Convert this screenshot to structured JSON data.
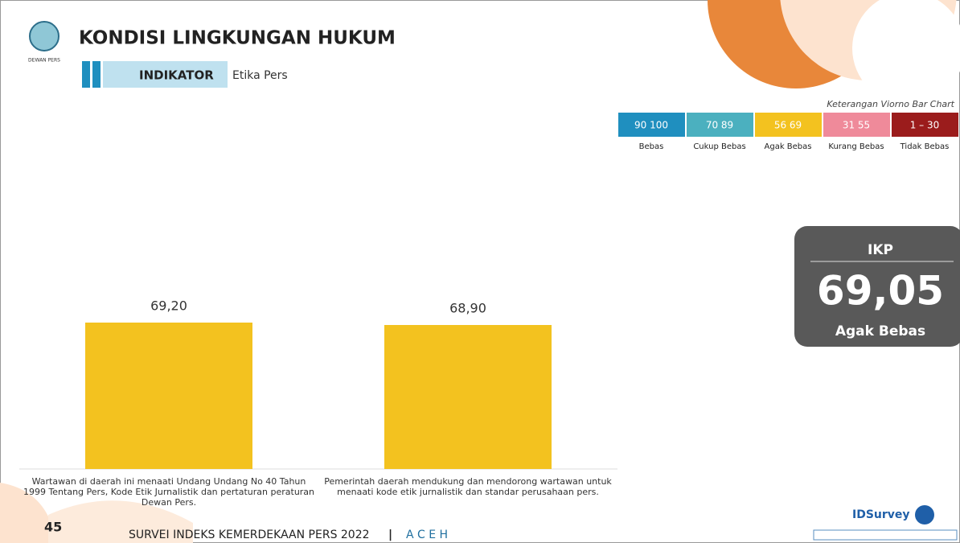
{
  "header": {
    "title": "KONDISI LINGKUNGAN HUKUM",
    "indicator_label": "INDIKATOR",
    "indicator": "Etika Pers",
    "logo_text": "DEWAN PERS"
  },
  "legend": {
    "title": "Keterangan Viorno Bar Chart",
    "items": [
      {
        "range": "90  100",
        "label": "Bebas",
        "color": "#1f8fbf"
      },
      {
        "range": "70  89",
        "label": "Cukup Bebas",
        "color": "#4bb0bf"
      },
      {
        "range": "56  69",
        "label": "Agak Bebas",
        "color": "#f3c21f"
      },
      {
        "range": "31  55",
        "label": "Kurang Bebas",
        "color": "#ef8a9a"
      },
      {
        "range": "1 – 30",
        "label": "Tidak Bebas",
        "color": "#9b1c1c"
      }
    ]
  },
  "ikp": {
    "title": "IKP",
    "value": "69,05",
    "category": "Agak Bebas"
  },
  "chart_data": {
    "type": "bar",
    "categories": [
      "Wartawan di daerah ini menaati Undang Undang No 40 Tahun 1999 Tentang Pers, Kode Etik Jurnalistik dan pertaturan peraturan Dewan Pers.",
      "Pemerintah daerah mendukung dan mendorong wartawan untuk menaati kode etik jurnalistik dan standar perusahaan pers."
    ],
    "values": [
      69.2,
      68.9
    ],
    "value_labels": [
      "69,20",
      "68,90"
    ],
    "color": "#f3c21f",
    "ylim": [
      51,
      73
    ]
  },
  "footer": {
    "page": "45",
    "survey": "SURVEI INDEKS KEMERDEKAAN PERS 2022",
    "region": "A C E H",
    "brand": "IDSurvey"
  }
}
